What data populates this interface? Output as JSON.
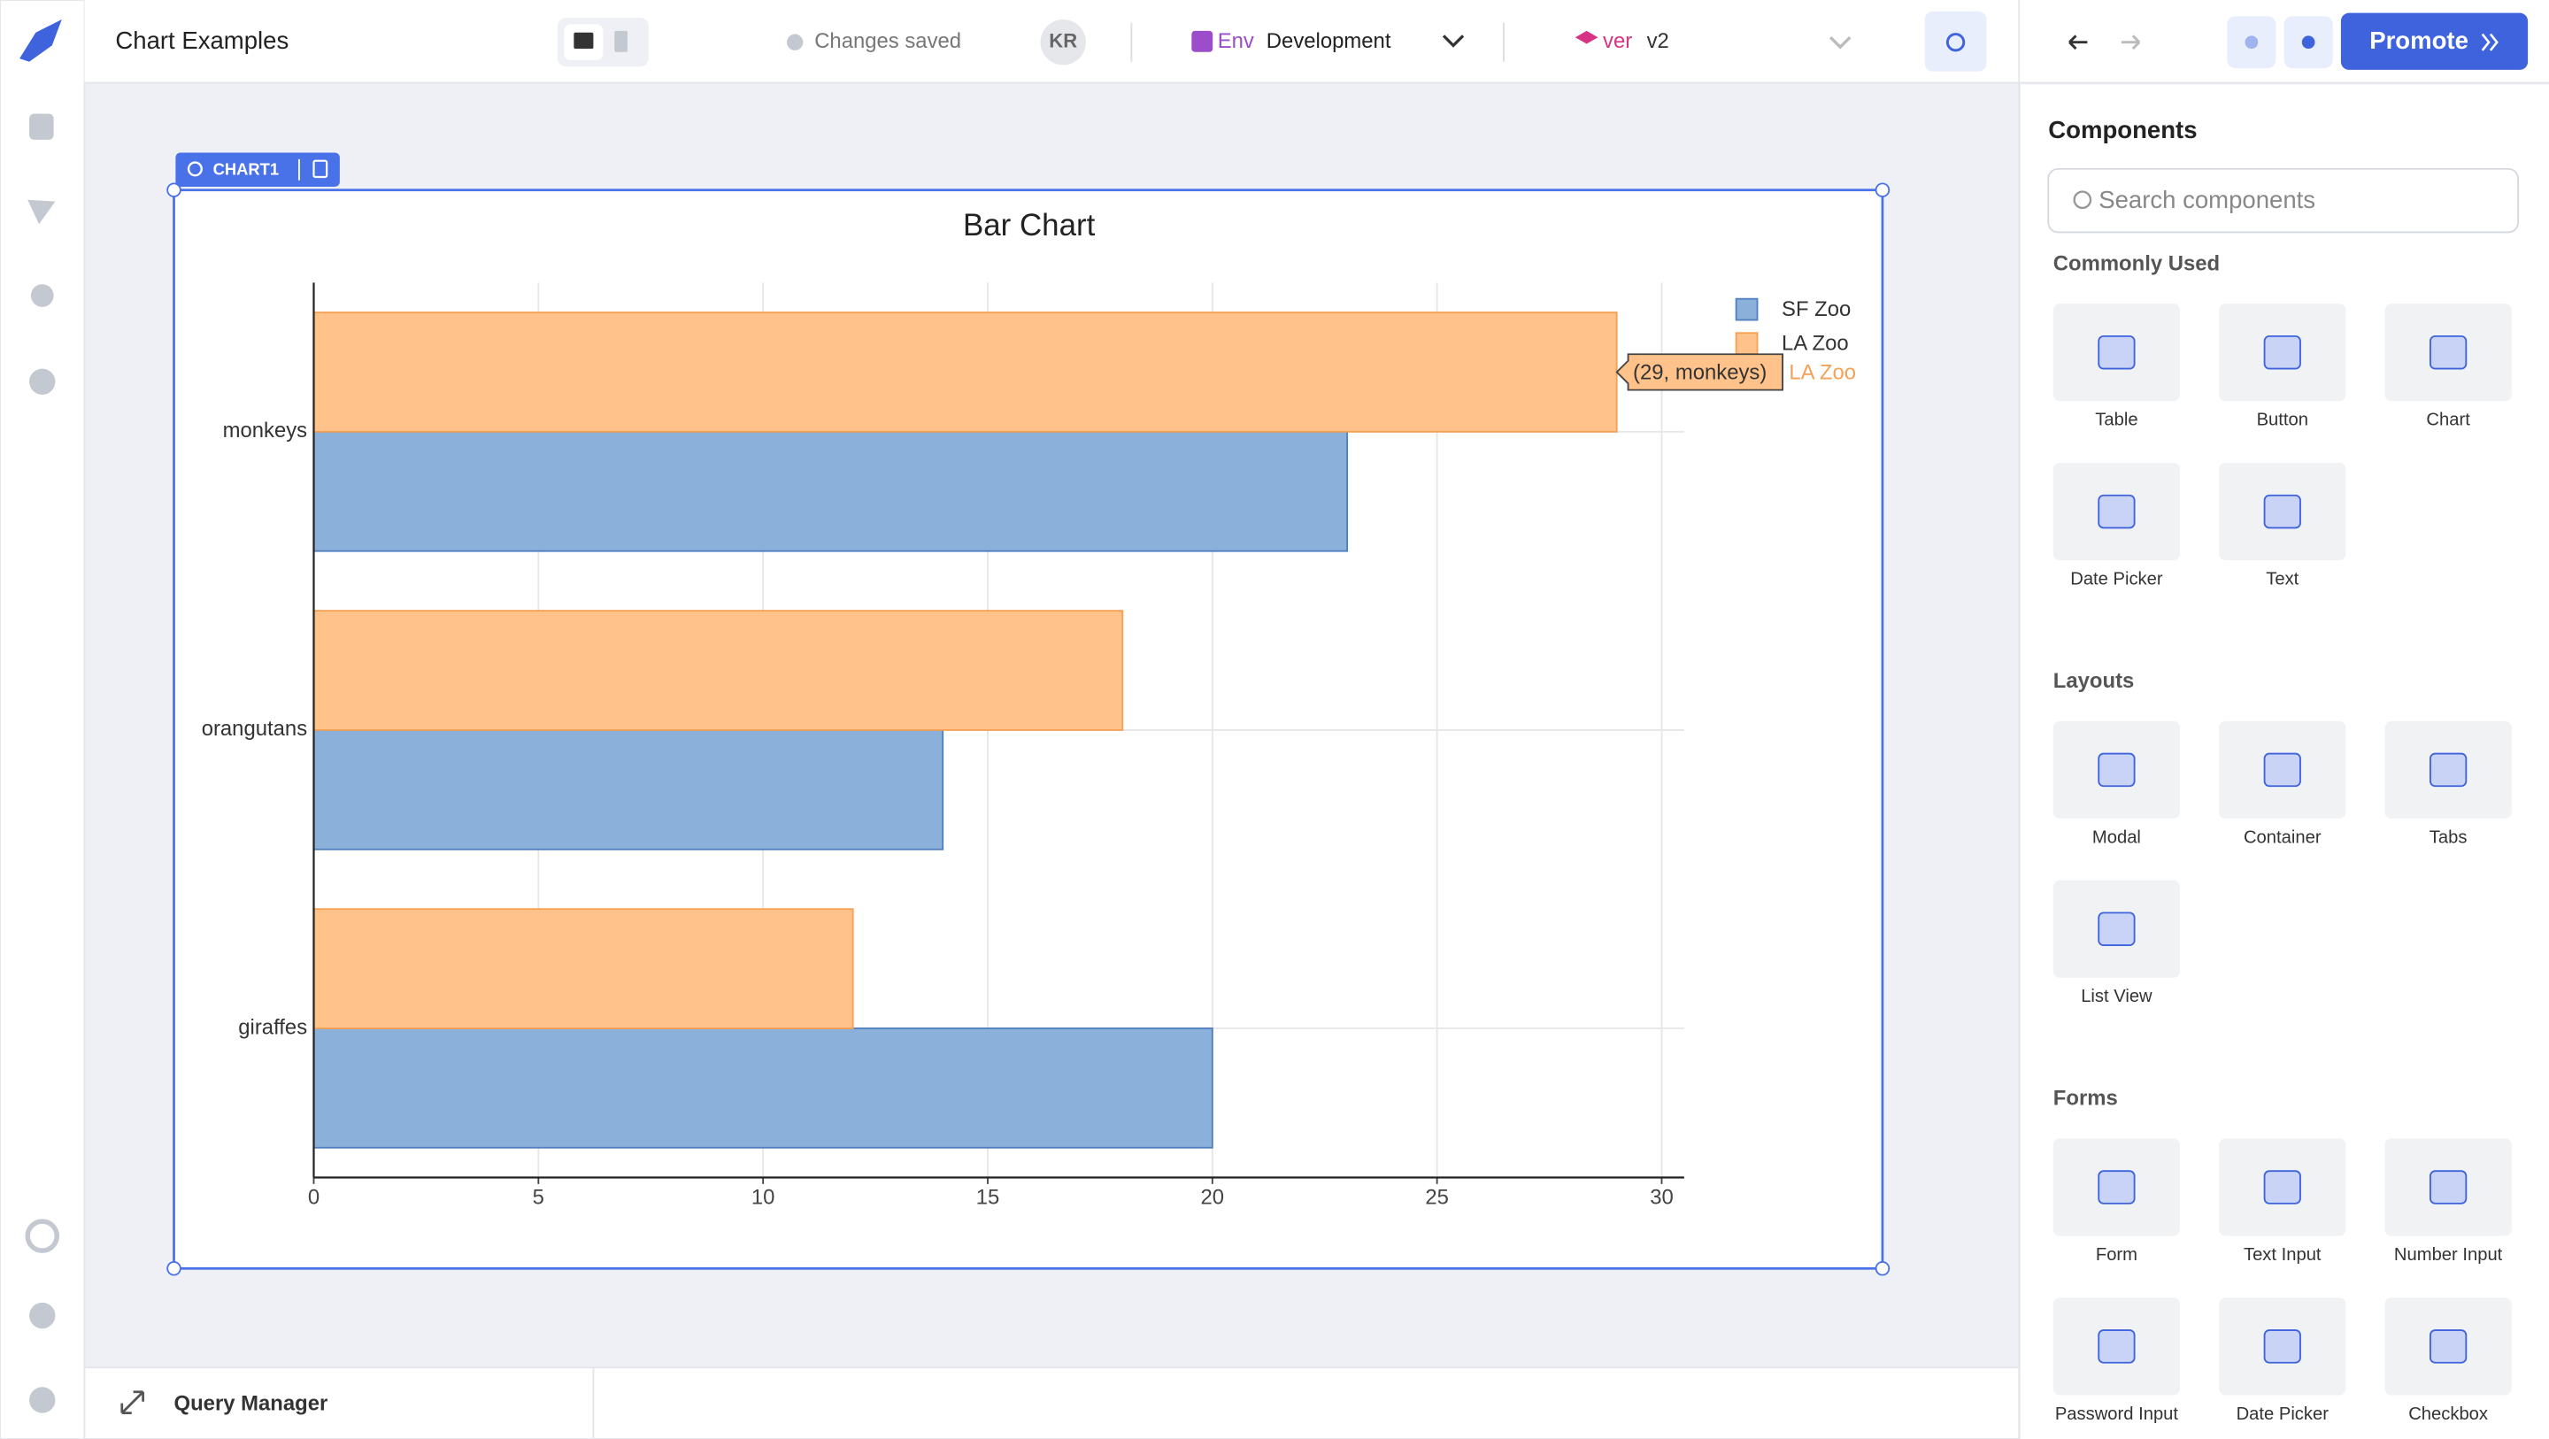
{
  "header": {
    "title": "Chart Examples",
    "status": "Changes saved",
    "avatar": "KR",
    "env_label": "Env",
    "env_value": "Development",
    "version_label": "ver",
    "version_value": "v2",
    "promote": "Promote"
  },
  "widget_label": "CHART1",
  "sidebar": {
    "title": "Components",
    "search_placeholder": "Search components",
    "sections": [
      {
        "title": "Commonly Used",
        "items": [
          "Table",
          "Button",
          "Chart",
          "Date Picker",
          "Text"
        ]
      },
      {
        "title": "Layouts",
        "items": [
          "Modal",
          "Container",
          "Tabs",
          "List View"
        ]
      },
      {
        "title": "Forms",
        "items": [
          "Form",
          "Text Input",
          "Number Input",
          "Password Input",
          "Date Picker",
          "Checkbox"
        ]
      }
    ]
  },
  "query_manager": "Query Manager",
  "chart_data": {
    "type": "bar",
    "orientation": "horizontal",
    "title": "Bar Chart",
    "categories": [
      "giraffes",
      "orangutans",
      "monkeys"
    ],
    "series": [
      {
        "name": "SF Zoo",
        "color": "#8bb0d9",
        "values": [
          20,
          14,
          23
        ]
      },
      {
        "name": "LA Zoo",
        "color": "#ffc28a",
        "values": [
          12,
          18,
          29
        ]
      }
    ],
    "xlim": [
      0,
      30.5
    ],
    "xticks": [
      0,
      5,
      10,
      15,
      20,
      25,
      30
    ],
    "grid": true,
    "legend": "top-right",
    "tooltip": "(29, monkeys)"
  }
}
